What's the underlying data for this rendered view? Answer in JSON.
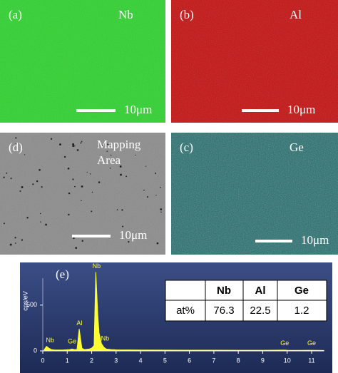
{
  "panels": [
    {
      "label": "(a)",
      "element": "Nb",
      "scale_bar": "10μm"
    },
    {
      "label": "(b)",
      "element": "Al",
      "scale_bar": "10μm"
    },
    {
      "label": "(d)",
      "element": [
        "Mapping",
        "Area"
      ],
      "scale_bar": "10μm"
    },
    {
      "label": "(c)",
      "element": "Ge",
      "scale_bar": "10μm"
    }
  ],
  "chart_data": {
    "type": "area",
    "label": "(e)",
    "y_label": "cps/eV",
    "color": "#ffff33",
    "x": [
      0.05,
      0.15,
      0.25,
      0.35,
      0.5,
      0.8,
      1.1,
      1.2,
      1.3,
      1.4,
      1.49,
      1.6,
      1.7,
      1.9,
      2.0,
      2.1,
      2.17,
      2.25,
      2.3,
      2.4,
      2.5,
      2.6,
      2.8,
      3.0,
      4,
      5,
      6,
      7,
      8,
      9,
      9.9,
      10,
      10.5,
      11,
      11.5
    ],
    "values": [
      10,
      50,
      30,
      15,
      10,
      10,
      15,
      20,
      15,
      15,
      240,
      30,
      15,
      20,
      30,
      60,
      860,
      400,
      200,
      80,
      40,
      20,
      15,
      12,
      10,
      9,
      8,
      8,
      7,
      7,
      9,
      7,
      6,
      7,
      5
    ],
    "xlim": [
      0,
      11.5
    ],
    "ylim": [
      0,
      950
    ],
    "xticks": [
      0,
      1,
      2,
      3,
      4,
      5,
      6,
      7,
      8,
      9,
      10,
      11
    ],
    "yticks": [
      0,
      500
    ],
    "annotations": [
      {
        "text": "Nb",
        "x": 0.3,
        "y": 110
      },
      {
        "text": "Ge",
        "x": 1.2,
        "y": 100
      },
      {
        "text": "Al",
        "x": 1.5,
        "y": 300
      },
      {
        "text": "Nb",
        "x": 2.2,
        "y": 920
      },
      {
        "text": "Nb",
        "x": 2.55,
        "y": 130
      },
      {
        "text": "Ge",
        "x": 9.9,
        "y": 80
      },
      {
        "text": "Ge",
        "x": 11.0,
        "y": 80
      }
    ]
  },
  "table": {
    "header": [
      "Nb",
      "Al",
      "Ge"
    ],
    "row_label": "at%",
    "values": [
      76.3,
      22.5,
      1.2
    ]
  }
}
